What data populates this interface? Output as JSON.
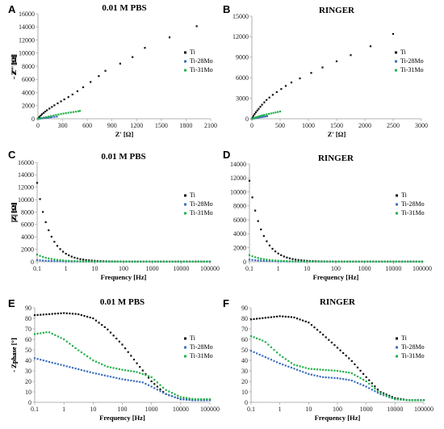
{
  "colors": {
    "Ti": "#111111",
    "Ti-28Mo": "#3b6fbf",
    "Ti-31Mo": "#22b04a"
  },
  "chart_data": [
    {
      "id": "A",
      "panel_label": "A",
      "type": "scatter",
      "title": "0.01 M PBS",
      "xlabel": "Z' [Ω]",
      "ylabel": "- Z'' [Ω]",
      "xlim": [
        0,
        2100
      ],
      "ylim": [
        0,
        16000
      ],
      "xticks": [
        0,
        300,
        600,
        900,
        1200,
        1500,
        1800,
        2100
      ],
      "yticks": [
        0,
        2000,
        4000,
        6000,
        8000,
        10000,
        12000,
        14000,
        16000
      ],
      "xlog": false,
      "legend_placement": "right",
      "series": [
        {
          "name": "Ti",
          "color": "#111111",
          "x": [
            0,
            10,
            20,
            35,
            50,
            70,
            90,
            110,
            140,
            170,
            200,
            240,
            280,
            320,
            370,
            420,
            480,
            550,
            640,
            740,
            820,
            1000,
            1150,
            1300,
            1600,
            1930
          ],
          "y": [
            0,
            150,
            300,
            500,
            700,
            900,
            1100,
            1300,
            1550,
            1800,
            2050,
            2350,
            2650,
            2950,
            3300,
            3700,
            4200,
            4800,
            5600,
            6500,
            7300,
            8400,
            9400,
            10800,
            12400,
            14100
          ]
        },
        {
          "name": "Ti-28Mo",
          "color": "#3b6fbf",
          "x": [
            0,
            15,
            30,
            50,
            70,
            90,
            110,
            130,
            150,
            170,
            200,
            230
          ],
          "y": [
            0,
            20,
            40,
            70,
            100,
            130,
            160,
            190,
            220,
            250,
            290,
            330
          ]
        },
        {
          "name": "Ti-31Mo",
          "color": "#22b04a",
          "x": [
            0,
            20,
            40,
            70,
            100,
            130,
            160,
            190,
            220,
            250,
            280,
            310,
            340,
            370,
            400,
            430,
            460,
            490,
            510
          ],
          "y": [
            0,
            50,
            100,
            180,
            260,
            340,
            420,
            500,
            580,
            650,
            720,
            790,
            850,
            910,
            970,
            1020,
            1080,
            1130,
            1200
          ]
        }
      ]
    },
    {
      "id": "B",
      "panel_label": "B",
      "type": "scatter",
      "title": "RINGER",
      "xlabel": "Z' [Ω]",
      "ylabel": "- Z'' [Ω]",
      "xlim": [
        0,
        3000
      ],
      "ylim": [
        0,
        15000
      ],
      "xticks": [
        0,
        500,
        1000,
        1500,
        2000,
        2500,
        3000
      ],
      "yticks": [
        0,
        3000,
        6000,
        9000,
        12000,
        15000
      ],
      "xlog": false,
      "legend_placement": "right",
      "series": [
        {
          "name": "Ti",
          "color": "#111111",
          "x": [
            0,
            15,
            30,
            50,
            70,
            95,
            120,
            150,
            180,
            220,
            260,
            310,
            370,
            440,
            520,
            600,
            700,
            850,
            1050,
            1250,
            1500,
            1750,
            2100,
            2500
          ],
          "y": [
            0,
            200,
            450,
            700,
            950,
            1200,
            1450,
            1750,
            2050,
            2400,
            2750,
            3100,
            3500,
            3900,
            4350,
            4800,
            5300,
            5900,
            6700,
            7500,
            8400,
            9300,
            10600,
            12400
          ]
        },
        {
          "name": "Ti-28Mo",
          "color": "#3b6fbf",
          "x": [
            0,
            20,
            40,
            60,
            80,
            100,
            120,
            150,
            180,
            210,
            240,
            270
          ],
          "y": [
            0,
            30,
            60,
            90,
            120,
            150,
            180,
            220,
            260,
            300,
            340,
            380
          ]
        },
        {
          "name": "Ti-31Mo",
          "color": "#22b04a",
          "x": [
            0,
            20,
            40,
            70,
            100,
            130,
            160,
            190,
            220,
            260,
            300,
            340,
            380,
            420,
            460,
            500
          ],
          "y": [
            0,
            60,
            120,
            200,
            280,
            360,
            430,
            500,
            560,
            640,
            710,
            780,
            850,
            920,
            990,
            1060
          ]
        }
      ]
    },
    {
      "id": "C",
      "panel_label": "C",
      "type": "scatter",
      "title": "0.01 M PBS",
      "xlabel": "Frequency [Hz]",
      "ylabel": "|Z| [Ω]",
      "xlim": [
        0.1,
        100000
      ],
      "ylim": [
        0,
        16000
      ],
      "xticks": [
        0.1,
        1,
        10,
        100,
        1000,
        10000,
        100000
      ],
      "xtick_labels": [
        "0.1",
        "1",
        "10",
        "100",
        "1000",
        "10000",
        "100000"
      ],
      "yticks": [
        0,
        2000,
        4000,
        6000,
        8000,
        10000,
        12000,
        14000,
        16000
      ],
      "xlog": true,
      "legend_placement": "right",
      "series": [
        {
          "name": "Ti",
          "color": "#111111",
          "model": "decay",
          "y0": 12700,
          "ymin": 30,
          "power": 1.0
        },
        {
          "name": "Ti-28Mo",
          "color": "#3b6fbf",
          "model": "decay",
          "y0": 280,
          "ymin": 20,
          "power": 0.8
        },
        {
          "name": "Ti-31Mo",
          "color": "#22b04a",
          "model": "decay",
          "y0": 1150,
          "ymin": 20,
          "power": 0.85
        }
      ]
    },
    {
      "id": "D",
      "panel_label": "D",
      "type": "scatter",
      "title": "RINGER",
      "xlabel": "Frequency [Hz]",
      "ylabel": "|Z| [Ω]",
      "xlim": [
        0.1,
        100000
      ],
      "ylim": [
        0,
        14000
      ],
      "xticks": [
        0.1,
        1,
        10,
        100,
        1000,
        10000,
        100000
      ],
      "xtick_labels": [
        "0.1",
        "1",
        "10",
        "100",
        "1000",
        "10000",
        "100000"
      ],
      "yticks": [
        0,
        2000,
        4000,
        6000,
        8000,
        10000,
        12000,
        14000
      ],
      "xlog": true,
      "legend_placement": "right",
      "series": [
        {
          "name": "Ti",
          "color": "#111111",
          "model": "decay",
          "y0": 11600,
          "ymin": 25,
          "power": 1.0
        },
        {
          "name": "Ti-28Mo",
          "color": "#3b6fbf",
          "model": "decay",
          "y0": 300,
          "ymin": 20,
          "power": 0.8
        },
        {
          "name": "Ti-31Mo",
          "color": "#22b04a",
          "model": "decay",
          "y0": 950,
          "ymin": 20,
          "power": 0.85
        }
      ]
    },
    {
      "id": "E",
      "panel_label": "E",
      "type": "scatter",
      "title": "0.01 M PBS",
      "xlabel": "Frequency [Hz]",
      "ylabel": "- Zphase [°]",
      "xlim": [
        0.1,
        100000
      ],
      "ylim": [
        0,
        90
      ],
      "xticks": [
        0.1,
        1,
        10,
        100,
        1000,
        10000,
        100000
      ],
      "xtick_labels": [
        "0.1",
        "1",
        "10",
        "100",
        "1000",
        "10000",
        "100000"
      ],
      "yticks": [
        0,
        10,
        20,
        30,
        40,
        50,
        60,
        70,
        80,
        90
      ],
      "xlog": true,
      "legend_placement": "right",
      "series": [
        {
          "name": "Ti",
          "color": "#111111",
          "model": "interp",
          "fx": [
            0.1,
            1,
            3,
            10,
            30,
            100,
            300,
            1000,
            3000,
            10000,
            30000,
            100000
          ],
          "fy": [
            83,
            85,
            84,
            80,
            70,
            55,
            38,
            20,
            8,
            3,
            2,
            2
          ]
        },
        {
          "name": "Ti-28Mo",
          "color": "#3b6fbf",
          "model": "interp",
          "fx": [
            0.1,
            1,
            10,
            100,
            500,
            1000,
            3000,
            10000,
            30000,
            100000
          ],
          "fy": [
            42,
            35,
            28,
            22,
            19,
            15,
            8,
            3,
            2,
            2
          ]
        },
        {
          "name": "Ti-31Mo",
          "color": "#22b04a",
          "model": "interp",
          "fx": [
            0.1,
            0.3,
            1,
            3,
            10,
            30,
            100,
            300,
            1000,
            3000,
            10000,
            30000,
            100000
          ],
          "fy": [
            65,
            67,
            60,
            50,
            40,
            34,
            31,
            29,
            24,
            12,
            5,
            3,
            3
          ]
        }
      ]
    },
    {
      "id": "F",
      "panel_label": "F",
      "type": "scatter",
      "title": "RINGER",
      "xlabel": "Frequency [Hz]",
      "ylabel": "- Zphase [°]",
      "xlim": [
        0.1,
        100000
      ],
      "ylim": [
        0,
        90
      ],
      "xticks": [
        0.1,
        1,
        10,
        100,
        1000,
        10000,
        100000
      ],
      "xtick_labels": [
        "0.1",
        "1",
        "10",
        "100",
        "1000",
        "10000",
        "100000"
      ],
      "yticks": [
        0,
        10,
        20,
        30,
        40,
        50,
        60,
        70,
        80,
        90
      ],
      "xlog": true,
      "legend_placement": "right",
      "series": [
        {
          "name": "Ti",
          "color": "#111111",
          "model": "interp",
          "fx": [
            0.1,
            1,
            3,
            10,
            30,
            100,
            300,
            1000,
            3000,
            10000,
            30000,
            100000
          ],
          "fy": [
            79,
            82,
            81,
            76,
            65,
            52,
            40,
            24,
            10,
            4,
            2,
            2
          ]
        },
        {
          "name": "Ti-28Mo",
          "color": "#3b6fbf",
          "model": "interp",
          "fx": [
            0.1,
            1,
            10,
            30,
            100,
            300,
            1000,
            3000,
            10000,
            30000,
            100000
          ],
          "fy": [
            49,
            37,
            27,
            24,
            23,
            21,
            15,
            8,
            3,
            2,
            2
          ]
        },
        {
          "name": "Ti-31Mo",
          "color": "#22b04a",
          "model": "interp",
          "fx": [
            0.1,
            0.3,
            1,
            3,
            10,
            30,
            100,
            300,
            1000,
            3000,
            10000,
            30000,
            100000
          ],
          "fy": [
            63,
            58,
            45,
            36,
            32,
            31,
            30,
            28,
            20,
            9,
            3,
            2,
            2
          ]
        }
      ]
    }
  ]
}
